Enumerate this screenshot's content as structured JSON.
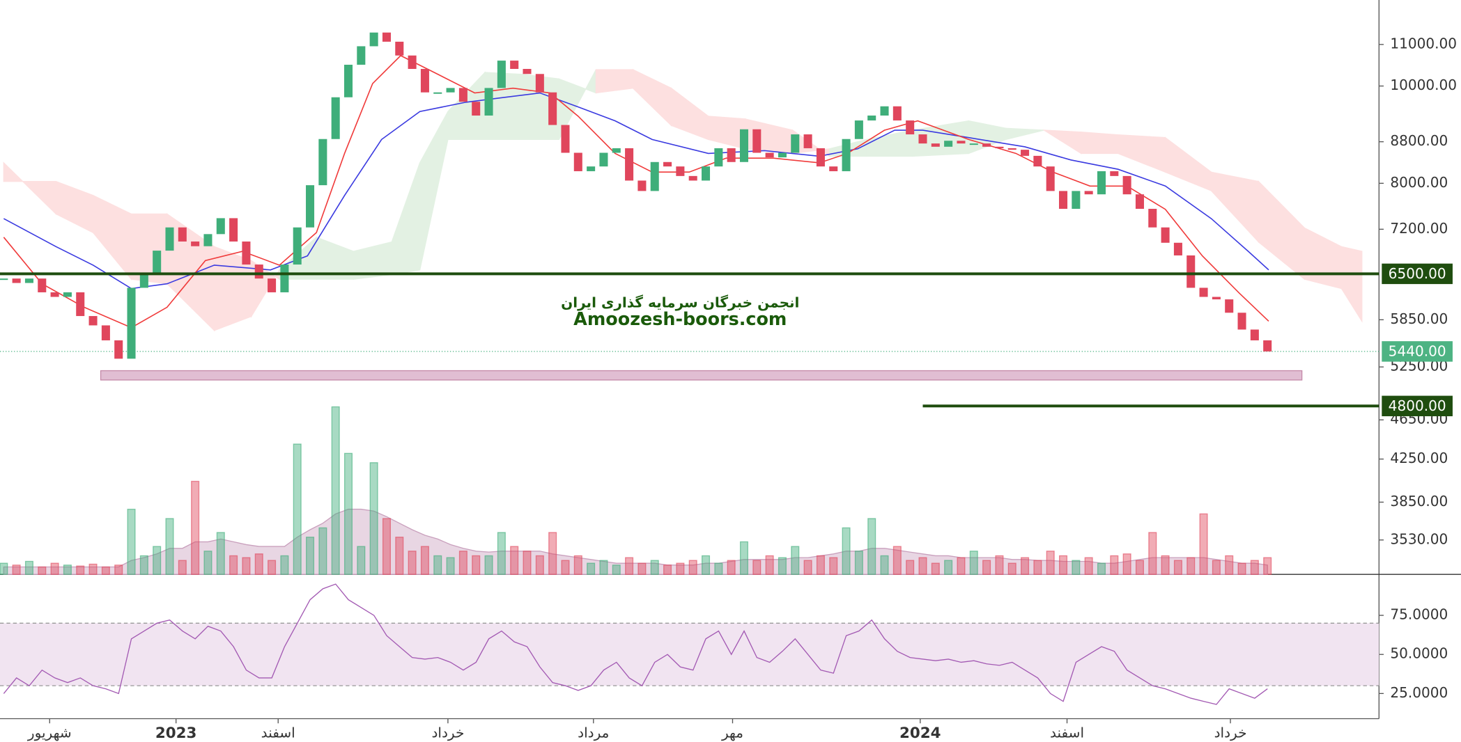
{
  "chart_data": {
    "type": "candlestick",
    "xlim": [
      -0.29,
      107.74
    ],
    "xticks": [
      {
        "value": 3.6,
        "label": "شهریور"
      },
      {
        "value": 13.5,
        "label": "2023"
      },
      {
        "value": 21.5,
        "label": "اسفند"
      },
      {
        "value": 34.8,
        "label": "خرداد"
      },
      {
        "value": 46.2,
        "label": "مرداد"
      },
      {
        "value": 57.1,
        "label": "مهر"
      },
      {
        "value": 71.8,
        "label": "2024"
      },
      {
        "value": 83.3,
        "label": "اسفند"
      },
      {
        "value": 96.1,
        "label": "خرداد"
      }
    ],
    "ylim": [
      3262,
      12180
    ],
    "log_scale": true,
    "yticks": [
      {
        "value": 11000,
        "label": "11000.00"
      },
      {
        "value": 10000,
        "label": "10000.00"
      },
      {
        "value": 8800,
        "label": "8800.00"
      },
      {
        "value": 8000,
        "label": "8000.00"
      },
      {
        "value": 7200,
        "label": "7200.00"
      },
      {
        "value": 5850,
        "label": "5850.00"
      },
      {
        "value": 5250,
        "label": "5250.00"
      },
      {
        "value": 4650,
        "label": "4650.00"
      },
      {
        "value": 4250,
        "label": "4250.00"
      },
      {
        "value": 3850,
        "label": "3850.00"
      },
      {
        "value": 3530,
        "label": "3530.00"
      }
    ],
    "candles": {
      "up_color": "#3fae7a",
      "down_color": "#e0465c",
      "close": [
        6430,
        6365,
        6430,
        6230,
        6165,
        6230,
        5900,
        5775,
        5580,
        5350,
        6295,
        6500,
        6855,
        7230,
        7000,
        6925,
        7120,
        7385,
        7000,
        6640,
        6430,
        6230,
        6640,
        7230,
        7965,
        8855,
        9745,
        10500,
        10955,
        11305,
        11070,
        10725,
        10400,
        9855,
        9855,
        9955,
        9645,
        9345,
        9955,
        10600,
        10400,
        10280,
        9855,
        9145,
        8580,
        8225,
        8315,
        8580,
        8670,
        8050,
        7860,
        8400,
        8315,
        8135,
        8050,
        8315,
        8670,
        8400,
        9055,
        8580,
        8490,
        8580,
        8950,
        8670,
        8315,
        8225,
        8855,
        9240,
        9345,
        9545,
        9240,
        8950,
        8765,
        8700,
        8820,
        8765,
        8765,
        8700,
        8670,
        8640,
        8520,
        8315,
        7860,
        7545,
        7860,
        7800,
        8225,
        8135,
        7800,
        7545,
        7230,
        6980,
        6780,
        6295,
        6165,
        6130,
        5945,
        5720,
        5580,
        5440
      ]
    },
    "volume": {
      "lim": [
        0,
        200
      ],
      "ma_color": "#d6b4cc",
      "values": [
        12,
        10,
        14,
        8,
        12,
        10,
        9,
        11,
        8,
        10,
        70,
        20,
        30,
        60,
        15,
        100,
        25,
        45,
        20,
        18,
        22,
        15,
        20,
        140,
        40,
        50,
        180,
        130,
        30,
        120,
        60,
        40,
        25,
        30,
        20,
        18,
        25,
        20,
        20,
        45,
        30,
        25,
        20,
        45,
        15,
        20,
        12,
        15,
        10,
        18,
        12,
        15,
        10,
        12,
        15,
        20,
        12,
        15,
        35,
        15,
        20,
        18,
        30,
        15,
        20,
        18,
        50,
        25,
        60,
        20,
        30,
        15,
        18,
        12,
        15,
        18,
        25,
        15,
        20,
        12,
        18,
        15,
        25,
        20,
        15,
        18,
        12,
        20,
        22,
        15,
        45,
        20,
        15,
        18,
        65,
        15,
        20,
        12,
        15,
        18
      ],
      "ma": [
        8,
        8,
        8,
        8,
        8,
        8,
        8,
        8,
        8,
        8,
        15,
        18,
        22,
        28,
        28,
        35,
        35,
        38,
        35,
        32,
        30,
        30,
        30,
        40,
        48,
        55,
        65,
        70,
        70,
        68,
        62,
        55,
        48,
        42,
        38,
        32,
        28,
        25,
        24,
        25,
        25,
        25,
        25,
        22,
        20,
        18,
        16,
        14,
        12,
        12,
        12,
        12,
        10,
        10,
        10,
        12,
        12,
        14,
        16,
        16,
        16,
        16,
        18,
        18,
        20,
        22,
        25,
        25,
        28,
        28,
        26,
        24,
        22,
        20,
        20,
        18,
        18,
        18,
        18,
        16,
        16,
        15,
        15,
        14,
        14,
        14,
        12,
        12,
        14,
        16,
        18,
        18,
        18,
        18,
        18,
        16,
        14,
        12,
        12,
        10
      ]
    },
    "ma_fast": {
      "color": "#f03a3a",
      "x": [
        0,
        3,
        6.3,
        10,
        12.8,
        15.8,
        18.7,
        21.6,
        24.5,
        26.7,
        28.9,
        31.1,
        34,
        36.9,
        39.9,
        42.8,
        45,
        47.9,
        50.8,
        53.7,
        56.6,
        60.3,
        63.9,
        66.1,
        69,
        71.6,
        75.6,
        79.3,
        82.2,
        85.1,
        88,
        91,
        93.9,
        96.8,
        99.1
      ],
      "values": [
        7069,
        6353,
        6021,
        5745,
        6021,
        6700,
        6844,
        6630,
        7145,
        8567,
        10056,
        10722,
        10273,
        9843,
        9950,
        9843,
        9331,
        8567,
        8208,
        8208,
        8476,
        8476,
        8385,
        8567,
        9037,
        9232,
        8846,
        8567,
        8208,
        7950,
        7950,
        7536,
        6773,
        6218,
        5831
      ]
    },
    "ma_slow": {
      "color": "#3a3ae0",
      "x": [
        0,
        4.1,
        7,
        10,
        12.8,
        16.5,
        20.9,
        23.8,
        26.7,
        29.6,
        32.6,
        36.2,
        39.1,
        42,
        45,
        47.9,
        50.8,
        55.2,
        59.6,
        63.9,
        66.9,
        69.8,
        72,
        75.6,
        80,
        83.6,
        87.3,
        91,
        94.6,
        97.5,
        99.1
      ],
      "values": [
        7377,
        6918,
        6630,
        6284,
        6353,
        6630,
        6558,
        6773,
        7781,
        8846,
        9431,
        9635,
        9738,
        9843,
        9533,
        9232,
        8846,
        8567,
        8622,
        8513,
        8659,
        9037,
        9037,
        8884,
        8697,
        8439,
        8261,
        7950,
        7377,
        6844,
        6558
      ]
    },
    "cloud": {
      "up_color": "#e3f1e3",
      "down_color": "#fde0e0",
      "x": [
        0,
        4.1,
        7,
        10,
        12.8,
        16.5,
        19.4,
        21.6,
        24.5,
        27.4,
        30.4,
        32.6,
        34.8,
        37.7,
        40.6,
        43.5,
        46.4,
        49.3,
        52.3,
        55.2,
        58.1,
        61.8,
        64.7,
        67.6,
        71.2,
        75.6,
        78.5,
        81.5,
        84.4,
        87.3,
        91,
        94.6,
        98.3,
        101.9,
        104.8,
        106.4
      ],
      "span_a": [
        8385,
        7456,
        7145,
        6420,
        6353,
        5708,
        5895,
        6558,
        7069,
        6844,
        6993,
        8385,
        9431,
        10317,
        10273,
        10164,
        9843,
        9950,
        9134,
        8846,
        8659,
        8567,
        8659,
        8846,
        9037,
        9232,
        9076,
        9037,
        8567,
        8567,
        8208,
        7865,
        6993,
        6420,
        6284,
        5831
      ],
      "span_b": [
        8034,
        8034,
        7781,
        7456,
        7456,
        6918,
        6700,
        6420,
        6420,
        6420,
        6489,
        6558,
        8846,
        8846,
        8846,
        8846,
        10383,
        10383,
        9950,
        9331,
        9272,
        9037,
        8513,
        8513,
        8513,
        8567,
        8846,
        9037,
        8998,
        8941,
        8884,
        8208,
        8034,
        7222,
        6918,
        6844
      ]
    },
    "levels": [
      {
        "value": 6500,
        "label": "6500.00",
        "color": "#1f4d0f"
      },
      {
        "value": 4800,
        "label": "4800.00",
        "color": "#1f4d0f",
        "x_start": 72
      }
    ],
    "last_price": {
      "value": 5440,
      "label": "5440.00",
      "color": "#4db383"
    },
    "zone": {
      "x": [
        7.6,
        101.7
      ],
      "y": [
        5095,
        5205
      ],
      "color": "#dcb3cb"
    },
    "rsi": {
      "color": "#a35ab3",
      "band": [
        30,
        70
      ],
      "ylim": [
        8.9,
        100
      ],
      "yticks": [
        {
          "value": 75,
          "label": "75.0000"
        },
        {
          "value": 50,
          "label": "50.0000"
        },
        {
          "value": 25,
          "label": "25.0000"
        }
      ],
      "values": [
        25,
        35,
        30,
        40,
        35,
        32,
        35,
        30,
        28,
        25,
        60,
        65,
        70,
        72,
        65,
        60,
        68,
        65,
        55,
        40,
        35,
        35,
        55,
        70,
        85,
        92,
        95,
        85,
        80,
        75,
        62,
        55,
        48,
        47,
        48,
        45,
        40,
        45,
        60,
        65,
        58,
        55,
        42,
        32,
        30,
        27,
        30,
        40,
        45,
        35,
        30,
        45,
        50,
        42,
        40,
        60,
        65,
        50,
        65,
        48,
        45,
        52,
        60,
        50,
        40,
        38,
        62,
        65,
        72,
        60,
        52,
        48,
        47,
        46,
        47,
        45,
        46,
        44,
        43,
        45,
        40,
        35,
        25,
        20,
        45,
        50,
        55,
        52,
        40,
        35,
        30,
        28,
        25,
        22,
        20,
        18,
        28,
        25,
        22,
        28
      ]
    },
    "watermark": {
      "lines": [
        "انجمن خبرگان سرمایه گذاری ایران",
        "Amoozesh-boors.com"
      ]
    }
  }
}
